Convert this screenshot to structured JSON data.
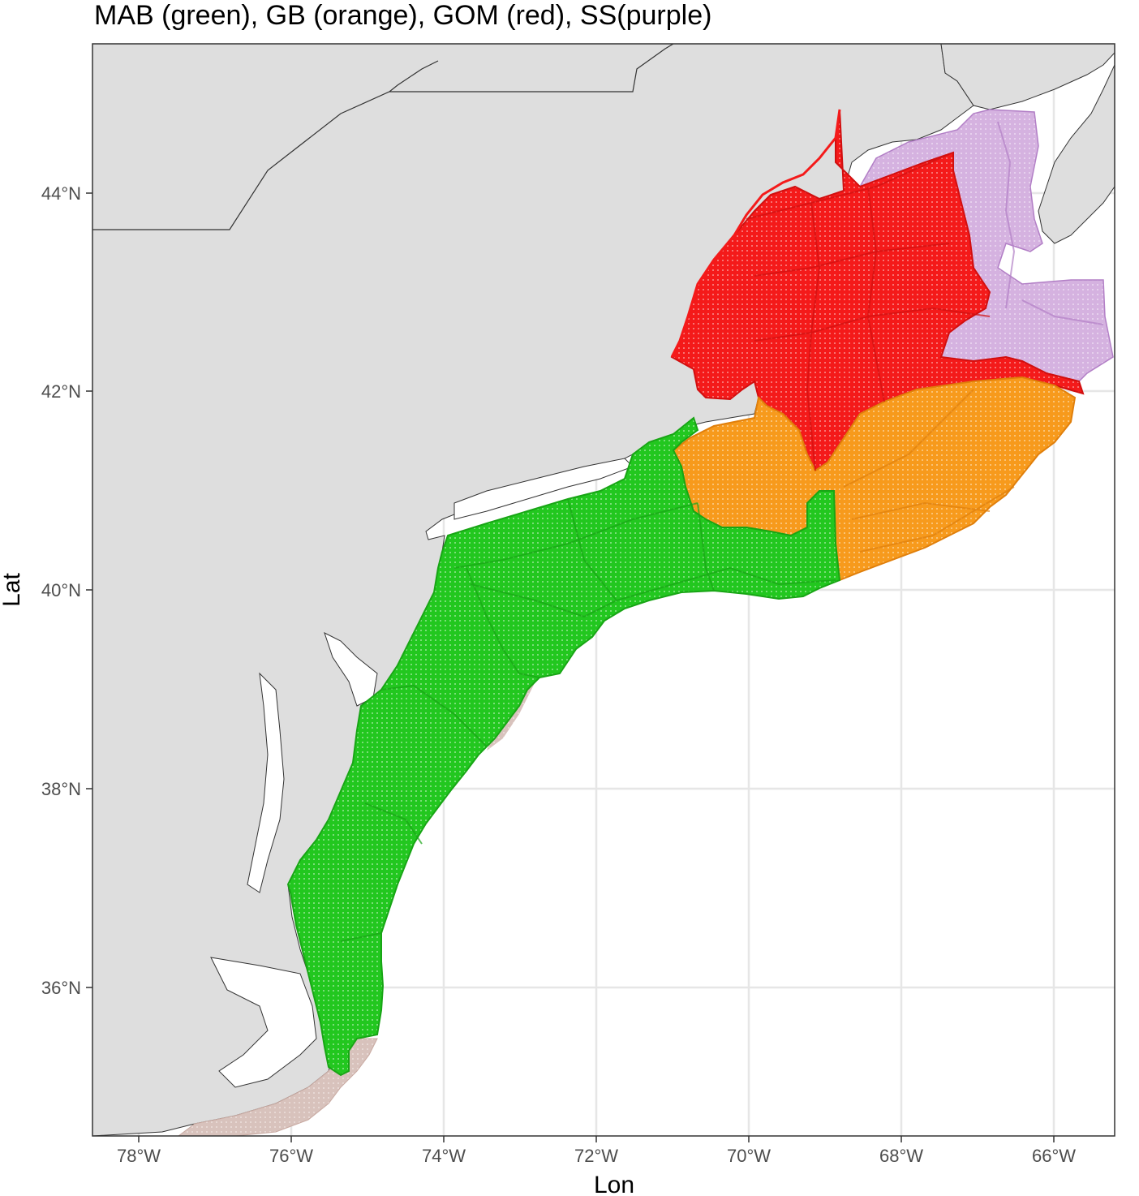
{
  "title": "MAB (green), GB (orange), GOM (red), SS(purple)",
  "axes": {
    "xlabel": "Lon",
    "ylabel": "Lat",
    "x_ticks": [
      "78°W",
      "76°W",
      "74°W",
      "72°W",
      "70°W",
      "68°W",
      "66°W"
    ],
    "y_ticks": [
      "36°N",
      "38°N",
      "40°N",
      "42°N",
      "44°N"
    ],
    "xlim": [
      -78.6,
      -64.9
    ],
    "ylim": [
      34.5,
      45.5
    ]
  },
  "colors": {
    "land": "#dedede",
    "water": "#ffffff",
    "grid": "#e6e6e6",
    "MAB": "#22c71f",
    "GB": "#f79a1c",
    "GOM": "#f41a1a",
    "SS": "#c89bd8",
    "south": "#cdb3ad"
  },
  "regions": [
    "MAB",
    "GB",
    "GOM",
    "SS"
  ]
}
